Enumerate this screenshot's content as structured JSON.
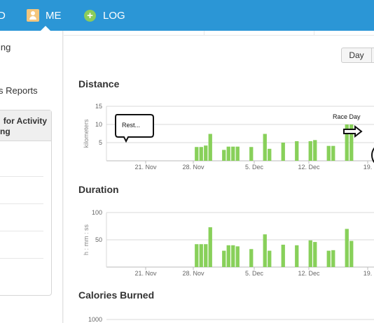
{
  "nav": {
    "prev_label": "D",
    "me_label": "ME",
    "log_label": "LOG",
    "accent": "#2b96d6"
  },
  "sidebar": {
    "links": [
      "ing",
      "s Reports"
    ],
    "panel_title_line1": "for Activity",
    "panel_title_line2": "ng"
  },
  "controls": {
    "day_label": "Day"
  },
  "sections": {
    "distance": "Distance",
    "duration": "Duration",
    "calories": "Calories Burned"
  },
  "annotations": {
    "rest": "Rest...",
    "race_day": "Race Day"
  },
  "chart_data": [
    {
      "type": "bar",
      "title": "Distance",
      "ylabel": "kilometers",
      "ylim": [
        0,
        15
      ],
      "yticks": [
        "15",
        "10",
        "5"
      ],
      "xticks": [
        "21. Nov",
        "28. Nov",
        "5. Dec",
        "12. Dec",
        "19."
      ],
      "bar_color": "#88d05a",
      "values": [
        null,
        null,
        null,
        null,
        null,
        null,
        null,
        null,
        null,
        null,
        null,
        null,
        null,
        null,
        null,
        null,
        null,
        null,
        null,
        3.8,
        3.8,
        4.2,
        7.4,
        null,
        null,
        3.0,
        3.9,
        3.9,
        3.9,
        null,
        null,
        3.8,
        null,
        null,
        7.4,
        3.3,
        null,
        null,
        5.0,
        null,
        null,
        5.4,
        null,
        null,
        5.4,
        5.7,
        null,
        null,
        4.1,
        4.1,
        null,
        null,
        10.0,
        10.0
      ],
      "x_start": "2012-11-03",
      "grid": true
    },
    {
      "type": "bar",
      "title": "Duration",
      "ylabel": "h : mm : ss",
      "ylim": [
        0,
        100
      ],
      "yticks": [
        "100",
        "50"
      ],
      "xticks": [
        "21. Nov",
        "28. Nov",
        "5. Dec",
        "12. Dec",
        "19."
      ],
      "bar_color": "#88d05a",
      "values": [
        null,
        null,
        null,
        null,
        null,
        null,
        null,
        null,
        null,
        null,
        null,
        null,
        null,
        null,
        null,
        null,
        null,
        null,
        null,
        42,
        42,
        42,
        73,
        null,
        null,
        30,
        40,
        40,
        38,
        null,
        null,
        33,
        null,
        null,
        60,
        30,
        null,
        null,
        41,
        null,
        null,
        40,
        null,
        null,
        49,
        46,
        null,
        null,
        30,
        31,
        null,
        null,
        70,
        48
      ],
      "grid": true
    },
    {
      "type": "bar",
      "title": "Calories Burned",
      "ylim": [
        0,
        1000
      ],
      "yticks": [
        "1000"
      ],
      "values": []
    }
  ]
}
